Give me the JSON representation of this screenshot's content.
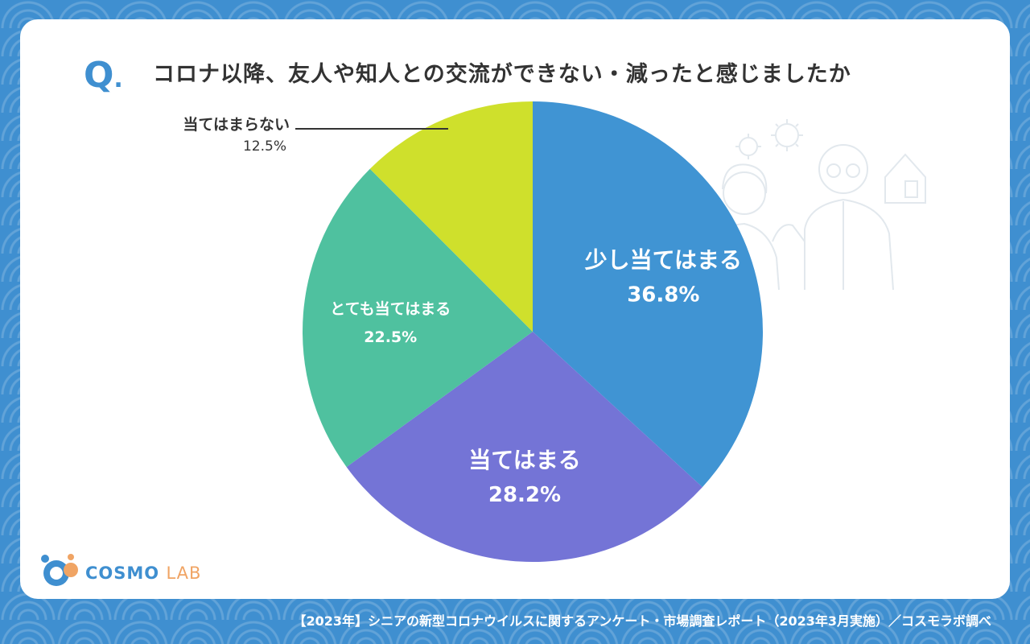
{
  "question": {
    "mark": "Q",
    "text": "コロナ以降、友人や知人との交流ができない・減ったと感じましたか"
  },
  "logo": {
    "name": "COSMO",
    "suffix": "LAB"
  },
  "footer": {
    "source": "【2023年】シニアの新型コロナウイルスに関するアンケート・市場調査レポート（2023年3月実施）／コスモラボ調べ"
  },
  "colors": {
    "background": "#3f8fd0",
    "card": "#ffffff",
    "slice_blue": "#4094d3",
    "slice_purple": "#7474d6",
    "slice_teal": "#4fc19f",
    "slice_lime": "#cfe02c"
  },
  "chart_data": {
    "type": "pie",
    "title": "コロナ以降、友人や知人との交流ができない・減ったと感じましたか",
    "unit": "%",
    "start_angle_deg": 0,
    "direction": "clockwise",
    "slices": [
      {
        "label": "少し当てはまる",
        "value": 36.8,
        "display": "36.8%",
        "color": "#4094d3"
      },
      {
        "label": "当てはまる",
        "value": 28.2,
        "display": "28.2%",
        "color": "#7474d6"
      },
      {
        "label": "とても当てはまる",
        "value": 22.5,
        "display": "22.5%",
        "color": "#4fc19f"
      },
      {
        "label": "当てはまらない",
        "value": 12.5,
        "display": "12.5%",
        "color": "#cfe02c"
      }
    ]
  }
}
